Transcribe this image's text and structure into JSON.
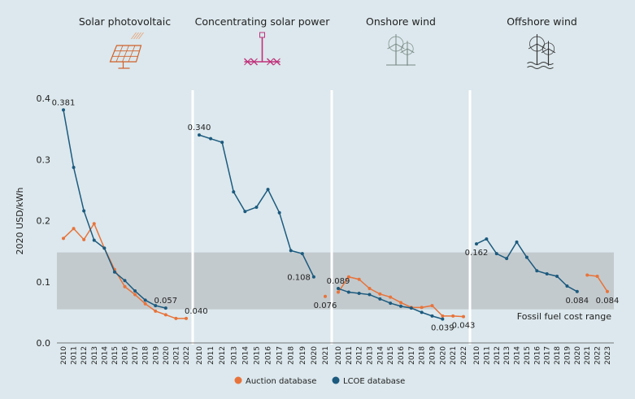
{
  "chart_data": {
    "type": "line",
    "ylabel": "2020 USD/kWh",
    "ylim": [
      0,
      0.4
    ],
    "yticks": [
      "0.0",
      "0.1",
      "0.2",
      "0.3",
      "0.4"
    ],
    "band": {
      "low": 0.055,
      "high": 0.148,
      "label": "Fossil fuel cost range"
    },
    "series_names": [
      "Auction database",
      "LCOE database"
    ],
    "colors": {
      "auction": "#e8733a",
      "lcoe": "#1c5a7e",
      "band": "#c3cacd",
      "panel": "#dce8ed",
      "divider": "#ffffff"
    },
    "panels": [
      {
        "title": "Solar photovoltaic",
        "icon": "solar-panel-icon",
        "x": [
          "2010",
          "2011",
          "2012",
          "2013",
          "2014",
          "2015",
          "2016",
          "2017",
          "2018",
          "2019",
          "2020",
          "2021",
          "2022"
        ],
        "lcoe": [
          [
            2010,
            0.381
          ],
          [
            2011,
            0.287
          ],
          [
            2012,
            0.216
          ],
          [
            2013,
            0.168
          ],
          [
            2014,
            0.155
          ],
          [
            2015,
            0.116
          ],
          [
            2016,
            0.102
          ],
          [
            2017,
            0.085
          ],
          [
            2018,
            0.07
          ],
          [
            2019,
            0.061
          ],
          [
            2020,
            0.057
          ]
        ],
        "auction": [
          [
            2010,
            0.171
          ],
          [
            2011,
            0.187
          ],
          [
            2012,
            0.169
          ],
          [
            2013,
            0.195
          ],
          [
            2014,
            0.155
          ],
          [
            2015,
            0.12
          ],
          [
            2016,
            0.092
          ],
          [
            2017,
            0.079
          ],
          [
            2018,
            0.064
          ],
          [
            2019,
            0.052
          ],
          [
            2020,
            0.046
          ],
          [
            2021,
            0.04
          ],
          [
            2022,
            0.04
          ]
        ],
        "labels": [
          {
            "x": 2010,
            "y": 0.381,
            "text": "0.381",
            "pos": "above"
          },
          {
            "x": 2020,
            "y": 0.057,
            "text": "0.057",
            "pos": "above"
          },
          {
            "x": 2022,
            "y": 0.04,
            "text": "0.040",
            "pos": "right-up"
          }
        ]
      },
      {
        "title": "Concentrating solar power",
        "icon": "concentrating-solar-icon",
        "x": [
          "2010",
          "2011",
          "2012",
          "2013",
          "2014",
          "2015",
          "2016",
          "2017",
          "2018",
          "2019",
          "2020",
          "2021"
        ],
        "lcoe": [
          [
            2010,
            0.34
          ],
          [
            2011,
            0.334
          ],
          [
            2012,
            0.328
          ],
          [
            2013,
            0.247
          ],
          [
            2014,
            0.215
          ],
          [
            2015,
            0.222
          ],
          [
            2016,
            0.251
          ],
          [
            2017,
            0.213
          ],
          [
            2018,
            0.151
          ],
          [
            2019,
            0.146
          ],
          [
            2020,
            0.108
          ]
        ],
        "auction": [
          [
            2021,
            0.076
          ]
        ],
        "labels": [
          {
            "x": 2010,
            "y": 0.34,
            "text": "0.340",
            "pos": "above"
          },
          {
            "x": 2020,
            "y": 0.108,
            "text": "0.108",
            "pos": "left"
          },
          {
            "x": 2021,
            "y": 0.076,
            "text": "0.076",
            "pos": "below"
          }
        ]
      },
      {
        "title": "Onshore wind",
        "icon": "onshore-wind-icon",
        "x": [
          "2010",
          "2011",
          "2012",
          "2013",
          "2014",
          "2015",
          "2016",
          "2017",
          "2018",
          "2019",
          "2020",
          "2021",
          "2022"
        ],
        "lcoe": [
          [
            2010,
            0.089
          ],
          [
            2011,
            0.083
          ],
          [
            2012,
            0.081
          ],
          [
            2013,
            0.079
          ],
          [
            2014,
            0.072
          ],
          [
            2015,
            0.065
          ],
          [
            2016,
            0.06
          ],
          [
            2017,
            0.057
          ],
          [
            2018,
            0.05
          ],
          [
            2019,
            0.044
          ],
          [
            2020,
            0.039
          ]
        ],
        "auction": [
          [
            2010,
            0.083
          ],
          [
            2011,
            0.108
          ],
          [
            2012,
            0.104
          ],
          [
            2013,
            0.089
          ],
          [
            2014,
            0.08
          ],
          [
            2015,
            0.075
          ],
          [
            2016,
            0.066
          ],
          [
            2017,
            0.058
          ],
          [
            2018,
            0.058
          ],
          [
            2019,
            0.061
          ],
          [
            2020,
            0.044
          ],
          [
            2021,
            0.044
          ],
          [
            2022,
            0.043
          ]
        ],
        "labels": [
          {
            "x": 2010,
            "y": 0.089,
            "text": "0.089",
            "pos": "above"
          },
          {
            "x": 2020,
            "y": 0.039,
            "text": "0.039",
            "pos": "below"
          },
          {
            "x": 2022,
            "y": 0.043,
            "text": "0.043",
            "pos": "below"
          }
        ]
      },
      {
        "title": "Offshore wind",
        "icon": "offshore-wind-icon",
        "x": [
          "2010",
          "2011",
          "2012",
          "2013",
          "2014",
          "2015",
          "2016",
          "2017",
          "2018",
          "2019",
          "2020",
          "2021",
          "2022",
          "2023"
        ],
        "lcoe": [
          [
            2010,
            0.162
          ],
          [
            2011,
            0.17
          ],
          [
            2012,
            0.146
          ],
          [
            2013,
            0.138
          ],
          [
            2014,
            0.165
          ],
          [
            2015,
            0.14
          ],
          [
            2016,
            0.118
          ],
          [
            2017,
            0.113
          ],
          [
            2018,
            0.109
          ],
          [
            2019,
            0.093
          ],
          [
            2020,
            0.084
          ]
        ],
        "auction": [
          [
            2021,
            0.111
          ],
          [
            2022,
            0.109
          ],
          [
            2023,
            0.084
          ]
        ],
        "labels": [
          {
            "x": 2010,
            "y": 0.162,
            "text": "0.162",
            "pos": "below"
          },
          {
            "x": 2020,
            "y": 0.084,
            "text": "0.084",
            "pos": "below"
          },
          {
            "x": 2023,
            "y": 0.084,
            "text": "0.084",
            "pos": "below"
          }
        ]
      }
    ]
  }
}
